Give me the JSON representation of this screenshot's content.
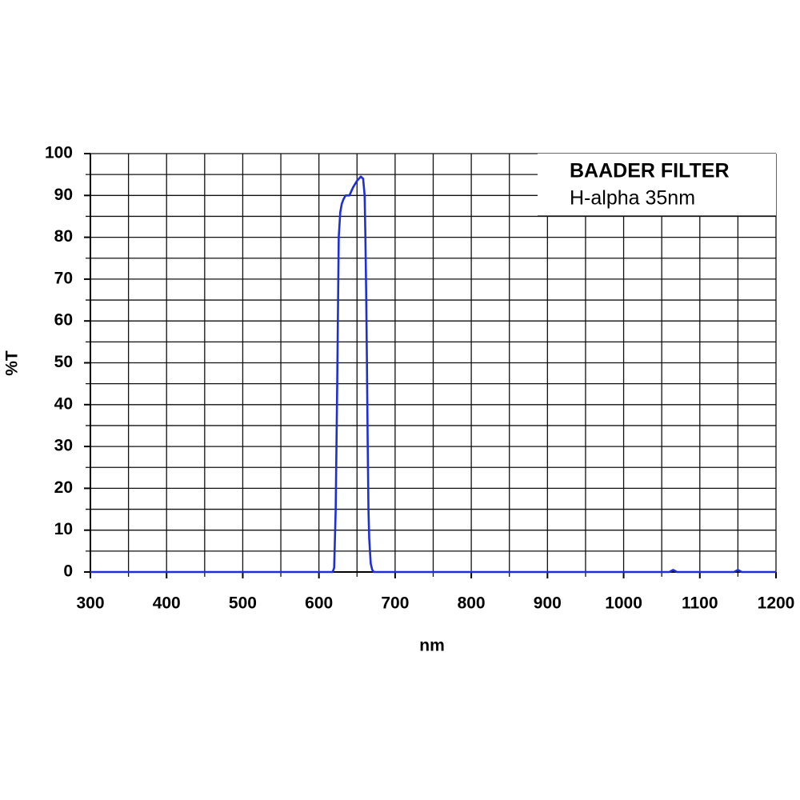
{
  "chart_data": {
    "type": "line",
    "title": "BAADER FILTER",
    "xlabel": "nm",
    "ylabel": "%T",
    "series": [
      {
        "name": "H-alpha 35nm",
        "color": "#1f2fd6",
        "x": [
          300,
          600,
          618,
          620,
          622,
          624,
          626,
          628,
          630,
          632,
          635,
          640,
          645,
          650,
          655,
          658,
          660,
          661,
          662,
          663,
          664,
          665,
          666,
          668,
          670,
          672,
          700,
          1060,
          1065,
          1070,
          1145,
          1150,
          1155,
          1200
        ],
        "values": [
          0,
          0,
          0,
          1,
          15,
          45,
          80,
          86,
          88,
          89,
          90,
          90,
          92,
          93.5,
          94.5,
          94,
          90,
          80,
          67,
          50,
          31,
          15,
          8,
          2,
          0.5,
          0,
          0,
          0,
          0.5,
          0,
          0,
          0.5,
          0,
          0
        ]
      }
    ],
    "xlim": [
      300,
      1200
    ],
    "xticks": [
      300,
      400,
      500,
      600,
      700,
      800,
      900,
      1000,
      1100,
      1200
    ],
    "ylim": [
      0,
      100
    ],
    "yticks": [
      0,
      10,
      20,
      30,
      40,
      50,
      60,
      70,
      80,
      90,
      100
    ],
    "x_grid": [
      300,
      350,
      400,
      450,
      500,
      550,
      600,
      650,
      700,
      750,
      800,
      850,
      900,
      950,
      1000,
      1050,
      1100,
      1150,
      1200
    ],
    "y_grid": [
      0,
      5,
      10,
      15,
      20,
      25,
      30,
      35,
      40,
      45,
      50,
      55,
      60,
      65,
      70,
      75,
      80,
      85,
      90,
      95,
      100
    ],
    "legend": "upper right"
  }
}
